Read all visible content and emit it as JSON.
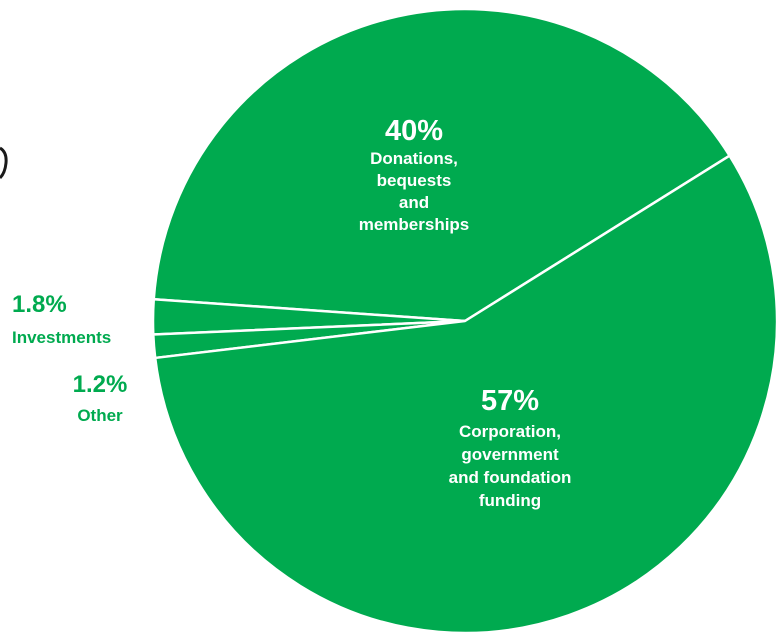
{
  "colors": {
    "slice_fill": "#00AA4F",
    "slice_border": "#FFFFFF",
    "inside_label": "#FFFFFF",
    "outside_label": "#00AA4F",
    "cut_mark": "#1a1a1a"
  },
  "chart_data": {
    "type": "pie",
    "title": "",
    "start_angle_deg": 32,
    "slices": [
      {
        "pct_label": "40%",
        "value": 40,
        "label_lines": [
          "Donations,",
          "bequests",
          "and",
          "memberships"
        ],
        "label_position": "inside"
      },
      {
        "pct_label": "1.8%",
        "value": 1.8,
        "label_lines": [
          "Investments"
        ],
        "label_position": "outside"
      },
      {
        "pct_label": "1.2%",
        "value": 1.2,
        "label_lines": [
          "Other"
        ],
        "label_position": "outside"
      },
      {
        "pct_label": "57%",
        "value": 57,
        "label_lines": [
          "Corporation,",
          "government",
          "and foundation",
          "funding"
        ],
        "label_position": "inside"
      }
    ]
  }
}
